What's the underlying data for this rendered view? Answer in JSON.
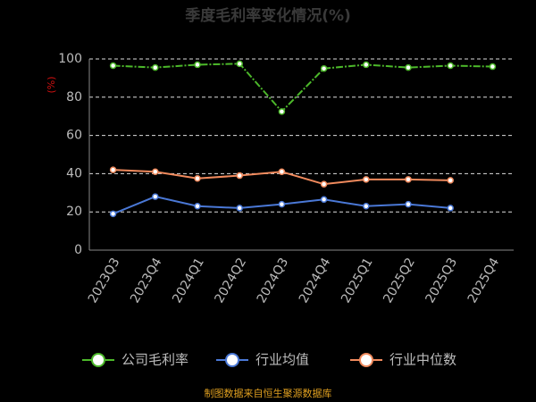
{
  "chart_data": {
    "type": "line",
    "title": "季度毛利率变化情况(%)",
    "y_label": "(%)",
    "categories": [
      "2023Q3",
      "2023Q4",
      "2024Q1",
      "2024Q2",
      "2024Q3",
      "2024Q4",
      "2025Q1",
      "2025Q2",
      "2025Q3",
      "2025Q4"
    ],
    "series": [
      {
        "name": "公司毛利率",
        "color": "#4cb82a",
        "values": [
          96.5,
          95.5,
          97,
          97.5,
          72.5,
          95,
          97,
          95.5,
          96.5,
          96
        ]
      },
      {
        "name": "行业均值",
        "color": "#4a78d6",
        "values": [
          19,
          28,
          23,
          22,
          24,
          26.5,
          23,
          24,
          22,
          null
        ]
      },
      {
        "name": "行业中位数",
        "color": "#f08a5d",
        "values": [
          42,
          41,
          37.5,
          39,
          41,
          34.5,
          37,
          37,
          36.5,
          null
        ]
      }
    ],
    "ylim": [
      0,
      100
    ],
    "yticks": [
      0,
      20,
      40,
      60,
      80,
      100
    ],
    "grid": true,
    "source": "制图数据来自恒生聚源数据库"
  }
}
